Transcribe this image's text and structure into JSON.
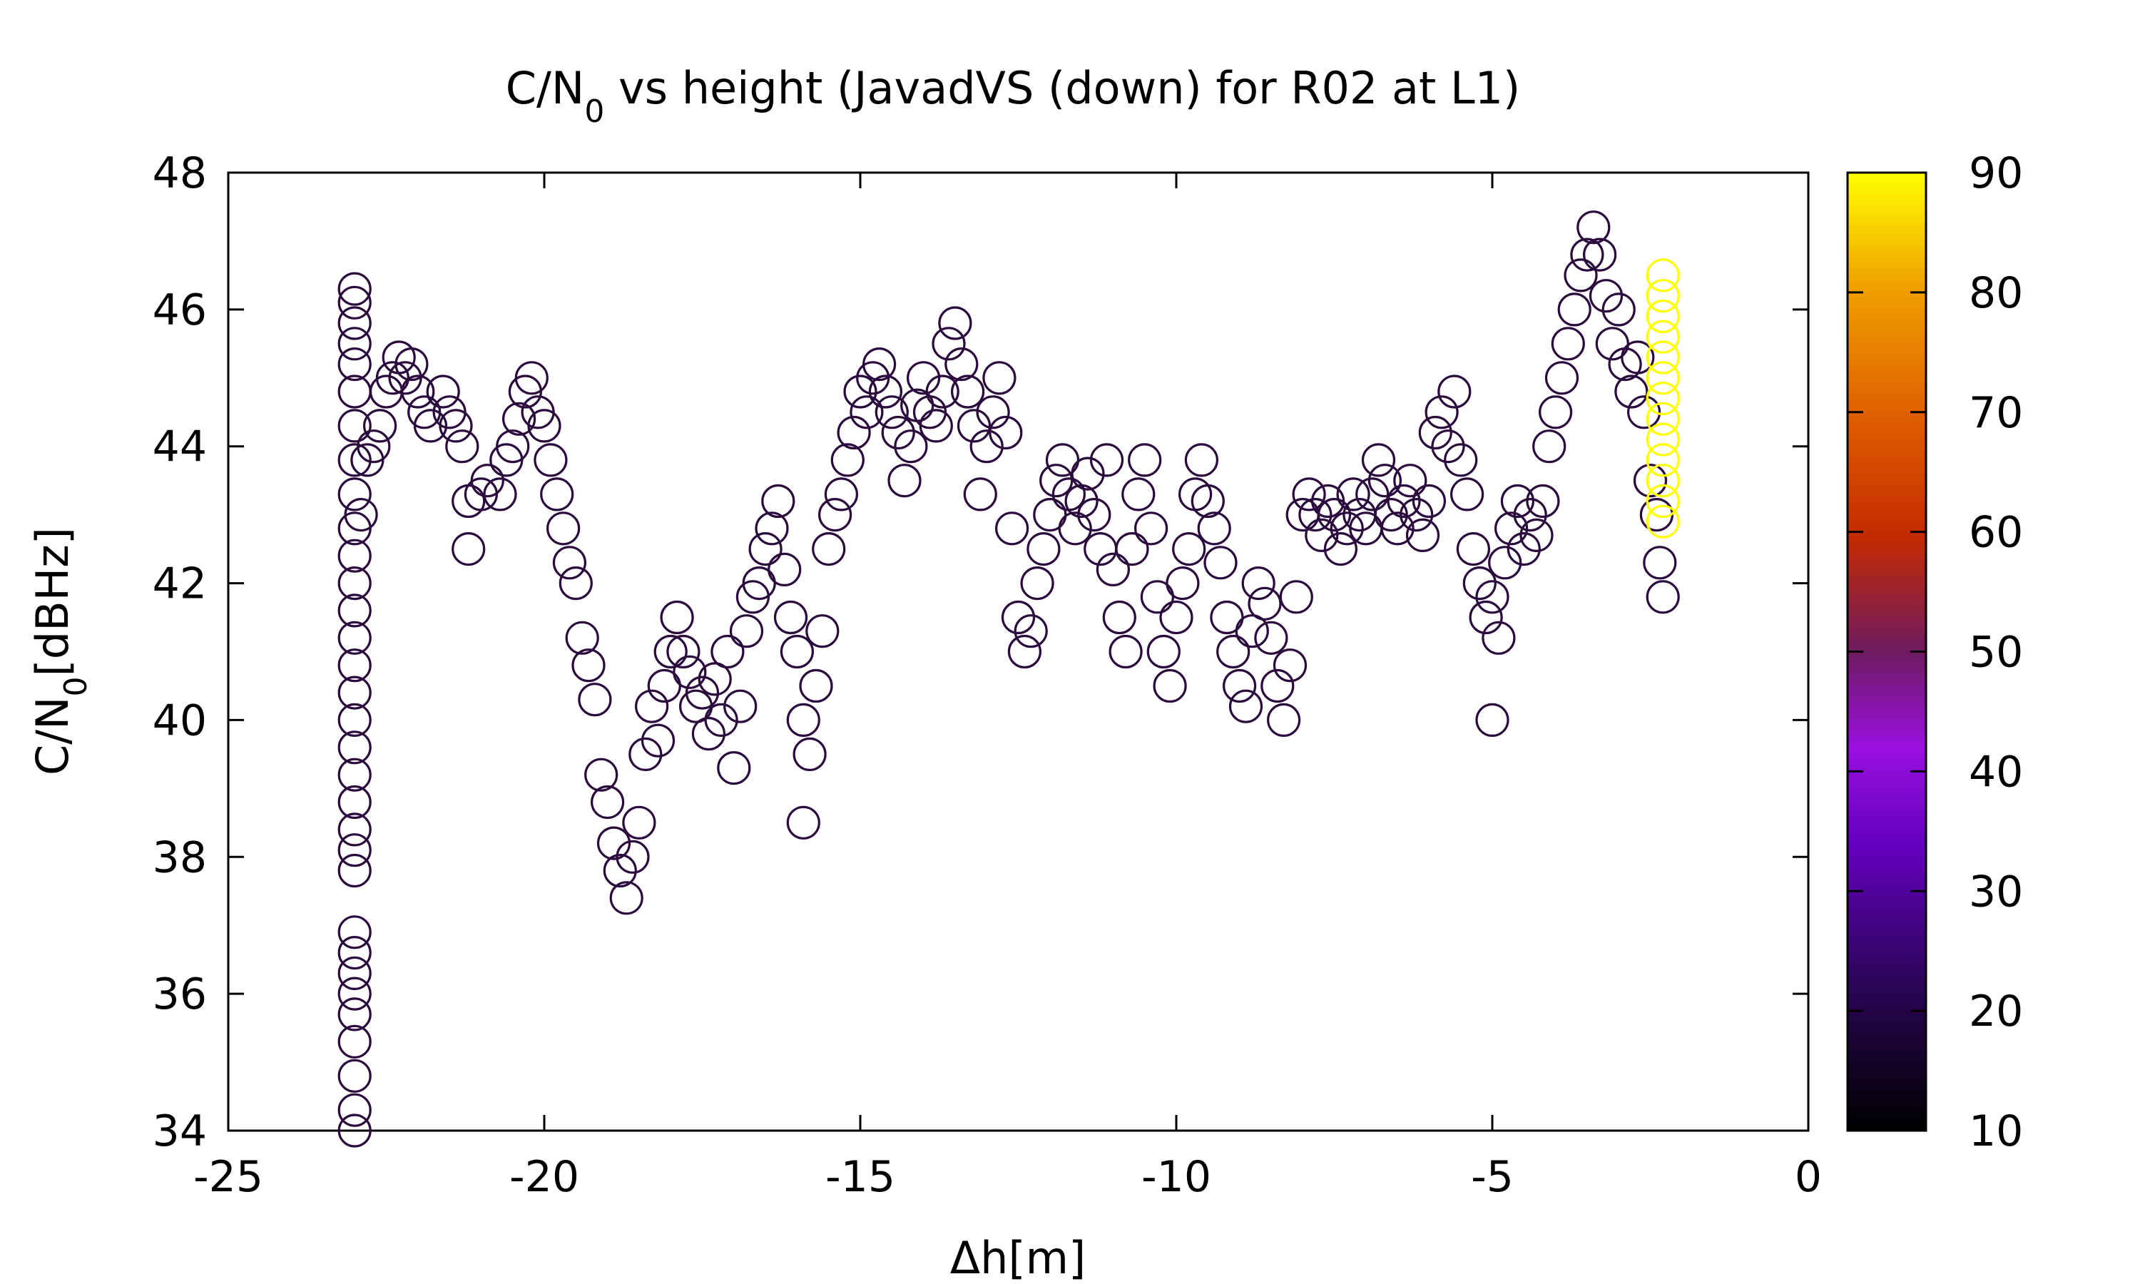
{
  "chart_data": {
    "type": "scatter",
    "title": "C/N",
    "title_sub": "0",
    "title_rest": " vs height (JavadVS (down) for R02 at L1)",
    "xlabel": "Δh[m]",
    "ylabel_main": "C/N",
    "ylabel_sub": "0",
    "ylabel_rest": "[dBHz]",
    "xlim": [
      -25,
      0
    ],
    "ylim": [
      34,
      48
    ],
    "x_ticks": [
      "-25",
      "-20",
      "-15",
      "-10",
      "-5",
      "0"
    ],
    "y_ticks": [
      "34",
      "36",
      "38",
      "40",
      "42",
      "44",
      "46",
      "48"
    ],
    "colorbar": {
      "range": [
        10,
        90
      ],
      "ticks": [
        "10",
        "20",
        "30",
        "40",
        "50",
        "60",
        "70",
        "80",
        "90"
      ],
      "colors": [
        "#000000",
        "#2a0555",
        "#6400c0",
        "#9a10e0",
        "#6e1a60",
        "#c42a00",
        "#e06000",
        "#f0a000",
        "#ffff00"
      ]
    },
    "marker": "open-circle",
    "grid": false,
    "series": [
      {
        "color_value": 12,
        "points": [
          [
            -23,
            34
          ],
          [
            -23,
            34.3
          ],
          [
            -23,
            34.8
          ],
          [
            -23,
            35.3
          ],
          [
            -23,
            35.7
          ],
          [
            -23,
            36
          ],
          [
            -23,
            36.3
          ],
          [
            -23,
            36.6
          ],
          [
            -23,
            36.9
          ],
          [
            -23,
            37.8
          ],
          [
            -23,
            38.1
          ],
          [
            -23,
            38.4
          ],
          [
            -23,
            38.8
          ],
          [
            -23,
            39.2
          ],
          [
            -23,
            39.6
          ],
          [
            -23,
            40
          ],
          [
            -23,
            40.4
          ],
          [
            -23,
            40.8
          ],
          [
            -23,
            41.2
          ],
          [
            -23,
            41.6
          ],
          [
            -23,
            42
          ],
          [
            -23,
            42.4
          ],
          [
            -23,
            42.8
          ],
          [
            -23,
            43.3
          ],
          [
            -23,
            43.8
          ],
          [
            -23,
            44.3
          ],
          [
            -23,
            44.8
          ],
          [
            -23,
            45.2
          ],
          [
            -23,
            45.5
          ],
          [
            -23,
            45.8
          ],
          [
            -23,
            46.1
          ],
          [
            -23,
            46.3
          ],
          [
            -22.9,
            43
          ],
          [
            -22.8,
            43.8
          ],
          [
            -22.7,
            44
          ],
          [
            -22.6,
            44.3
          ],
          [
            -22.5,
            44.8
          ],
          [
            -22.4,
            45
          ],
          [
            -22.2,
            45
          ],
          [
            -22,
            44.8
          ],
          [
            -22.3,
            45.3
          ],
          [
            -22.1,
            45.2
          ],
          [
            -21.9,
            44.5
          ],
          [
            -21.8,
            44.3
          ],
          [
            -21.6,
            44.8
          ],
          [
            -21.5,
            44.5
          ],
          [
            -21.4,
            44.3
          ],
          [
            -21.3,
            44
          ],
          [
            -21.2,
            43.2
          ],
          [
            -21.2,
            42.5
          ],
          [
            -21,
            43.3
          ],
          [
            -20.9,
            43.5
          ],
          [
            -20.7,
            43.3
          ],
          [
            -20.6,
            43.8
          ],
          [
            -20.5,
            44
          ],
          [
            -20.4,
            44.4
          ],
          [
            -20.3,
            44.8
          ],
          [
            -20.2,
            45
          ],
          [
            -20.1,
            44.5
          ],
          [
            -20,
            44.3
          ],
          [
            -19.9,
            43.8
          ],
          [
            -19.8,
            43.3
          ],
          [
            -19.7,
            42.8
          ],
          [
            -19.6,
            42.3
          ],
          [
            -19.5,
            42
          ],
          [
            -19.4,
            41.2
          ],
          [
            -19.3,
            40.8
          ],
          [
            -19.2,
            40.3
          ],
          [
            -19.1,
            39.2
          ],
          [
            -19,
            38.8
          ],
          [
            -18.9,
            38.2
          ],
          [
            -18.8,
            37.8
          ],
          [
            -18.7,
            37.4
          ],
          [
            -18.6,
            38
          ],
          [
            -18.5,
            38.5
          ],
          [
            -18.4,
            39.5
          ],
          [
            -18.3,
            40.2
          ],
          [
            -18.2,
            39.7
          ],
          [
            -18.1,
            40.5
          ],
          [
            -18,
            41
          ],
          [
            -17.9,
            41.5
          ],
          [
            -17.8,
            41
          ],
          [
            -17.7,
            40.7
          ],
          [
            -17.6,
            40.2
          ],
          [
            -17.5,
            40.4
          ],
          [
            -17.4,
            39.8
          ],
          [
            -17.3,
            40.6
          ],
          [
            -17.2,
            40
          ],
          [
            -17.1,
            41
          ],
          [
            -17,
            39.3
          ],
          [
            -16.9,
            40.2
          ],
          [
            -16.8,
            41.3
          ],
          [
            -16.7,
            41.8
          ],
          [
            -16.6,
            42
          ],
          [
            -16.5,
            42.5
          ],
          [
            -16.4,
            42.8
          ],
          [
            -16.3,
            43.2
          ],
          [
            -16.2,
            42.2
          ],
          [
            -16.1,
            41.5
          ],
          [
            -16,
            41
          ],
          [
            -15.9,
            40
          ],
          [
            -15.8,
            39.5
          ],
          [
            -15.9,
            38.5
          ],
          [
            -15.7,
            40.5
          ],
          [
            -15.6,
            41.3
          ],
          [
            -15.5,
            42.5
          ],
          [
            -15.4,
            43
          ],
          [
            -15.3,
            43.3
          ],
          [
            -15.2,
            43.8
          ],
          [
            -15.1,
            44.2
          ],
          [
            -15,
            44.8
          ],
          [
            -14.9,
            44.5
          ],
          [
            -14.8,
            45
          ],
          [
            -14.7,
            45.2
          ],
          [
            -14.6,
            44.8
          ],
          [
            -14.5,
            44.5
          ],
          [
            -14.4,
            44.2
          ],
          [
            -14.3,
            43.5
          ],
          [
            -14.2,
            44
          ],
          [
            -14.1,
            44.6
          ],
          [
            -14,
            45
          ],
          [
            -13.9,
            44.5
          ],
          [
            -13.8,
            44.3
          ],
          [
            -13.7,
            44.8
          ],
          [
            -13.6,
            45.5
          ],
          [
            -13.5,
            45.8
          ],
          [
            -13.4,
            45.2
          ],
          [
            -13.3,
            44.8
          ],
          [
            -13.2,
            44.3
          ],
          [
            -13.1,
            43.3
          ],
          [
            -13,
            44
          ],
          [
            -12.9,
            44.5
          ],
          [
            -12.8,
            45
          ],
          [
            -12.7,
            44.2
          ],
          [
            -12.6,
            42.8
          ],
          [
            -12.5,
            41.5
          ],
          [
            -12.4,
            41
          ],
          [
            -12.3,
            41.3
          ],
          [
            -12.2,
            42
          ],
          [
            -12.1,
            42.5
          ],
          [
            -12,
            43
          ],
          [
            -11.9,
            43.5
          ],
          [
            -11.8,
            43.8
          ],
          [
            -11.7,
            43.3
          ],
          [
            -11.6,
            42.8
          ],
          [
            -11.5,
            43.2
          ],
          [
            -11.4,
            43.6
          ],
          [
            -11.3,
            43
          ],
          [
            -11.2,
            42.5
          ],
          [
            -11.1,
            43.8
          ],
          [
            -11,
            42.2
          ],
          [
            -10.9,
            41.5
          ],
          [
            -10.8,
            41
          ],
          [
            -10.7,
            42.5
          ],
          [
            -10.6,
            43.3
          ],
          [
            -10.5,
            43.8
          ],
          [
            -10.4,
            42.8
          ],
          [
            -10.3,
            41.8
          ],
          [
            -10.2,
            41
          ],
          [
            -10.1,
            40.5
          ],
          [
            -10,
            41.5
          ],
          [
            -9.9,
            42
          ],
          [
            -9.8,
            42.5
          ],
          [
            -9.7,
            43.3
          ],
          [
            -9.6,
            43.8
          ],
          [
            -9.5,
            43.2
          ],
          [
            -9.4,
            42.8
          ],
          [
            -9.3,
            42.3
          ],
          [
            -9.2,
            41.5
          ],
          [
            -9.1,
            41
          ],
          [
            -9,
            40.5
          ],
          [
            -8.9,
            40.2
          ],
          [
            -8.8,
            41.3
          ],
          [
            -8.7,
            42
          ],
          [
            -8.6,
            41.7
          ],
          [
            -8.5,
            41.2
          ],
          [
            -8.4,
            40.5
          ],
          [
            -8.3,
            40
          ],
          [
            -8.2,
            40.8
          ],
          [
            -8.1,
            41.8
          ],
          [
            -8,
            43
          ],
          [
            -7.9,
            43.3
          ],
          [
            -7.8,
            43
          ],
          [
            -7.7,
            42.7
          ],
          [
            -7.6,
            43.2
          ],
          [
            -7.5,
            43
          ],
          [
            -7.4,
            42.5
          ],
          [
            -7.3,
            42.8
          ],
          [
            -7.2,
            43.3
          ],
          [
            -7.1,
            43
          ],
          [
            -7,
            42.8
          ],
          [
            -6.9,
            43.3
          ],
          [
            -6.8,
            43.8
          ],
          [
            -6.7,
            43.5
          ],
          [
            -6.6,
            43
          ],
          [
            -6.5,
            42.8
          ],
          [
            -6.4,
            43.2
          ],
          [
            -6.3,
            43.5
          ],
          [
            -6.2,
            43
          ],
          [
            -6.1,
            42.7
          ],
          [
            -6,
            43.2
          ],
          [
            -5.9,
            44.2
          ],
          [
            -5.8,
            44.5
          ],
          [
            -5.7,
            44
          ],
          [
            -5.6,
            44.8
          ],
          [
            -5.5,
            43.8
          ],
          [
            -5.4,
            43.3
          ],
          [
            -5.3,
            42.5
          ],
          [
            -5.2,
            42
          ],
          [
            -5.1,
            41.5
          ],
          [
            -5,
            41.8
          ],
          [
            -5,
            40
          ],
          [
            -4.9,
            41.2
          ],
          [
            -4.8,
            42.3
          ],
          [
            -4.7,
            42.8
          ],
          [
            -4.6,
            43.2
          ],
          [
            -4.5,
            42.5
          ],
          [
            -4.4,
            43
          ],
          [
            -4.3,
            42.7
          ],
          [
            -4.2,
            43.2
          ],
          [
            -4.1,
            44
          ],
          [
            -4,
            44.5
          ],
          [
            -3.9,
            45
          ],
          [
            -3.8,
            45.5
          ],
          [
            -3.7,
            46
          ],
          [
            -3.6,
            46.5
          ],
          [
            -3.5,
            46.8
          ],
          [
            -3.4,
            47.2
          ],
          [
            -3.3,
            46.8
          ],
          [
            -3.2,
            46.2
          ],
          [
            -3.1,
            45.5
          ],
          [
            -3,
            46
          ],
          [
            -2.9,
            45.2
          ],
          [
            -2.8,
            44.8
          ],
          [
            -2.7,
            45.3
          ],
          [
            -2.6,
            44.5
          ],
          [
            -2.5,
            43.5
          ],
          [
            -2.4,
            43
          ],
          [
            -2.35,
            42.3
          ],
          [
            -2.3,
            41.8
          ]
        ]
      },
      {
        "color_value": 90,
        "points": [
          [
            -2.3,
            46.5
          ],
          [
            -2.3,
            46.2
          ],
          [
            -2.3,
            45.9
          ],
          [
            -2.3,
            45.6
          ],
          [
            -2.3,
            45.3
          ],
          [
            -2.3,
            45
          ],
          [
            -2.3,
            44.7
          ],
          [
            -2.3,
            44.4
          ],
          [
            -2.3,
            44.1
          ],
          [
            -2.3,
            43.8
          ],
          [
            -2.3,
            43.5
          ],
          [
            -2.3,
            43.2
          ],
          [
            -2.3,
            42.9
          ]
        ]
      }
    ]
  }
}
